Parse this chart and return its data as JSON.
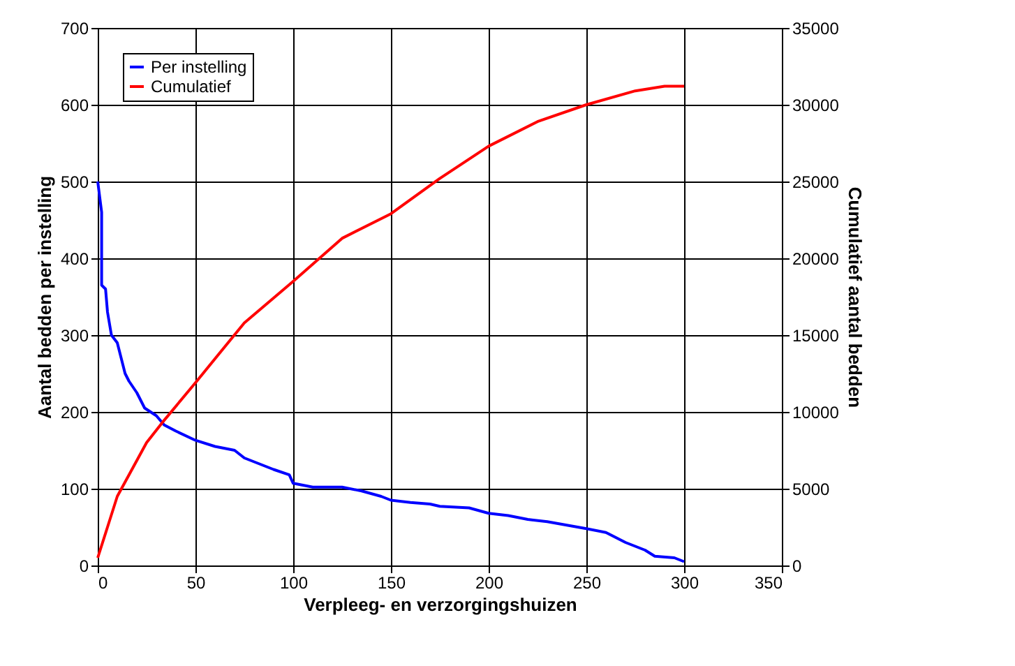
{
  "chart_data": {
    "type": "line",
    "xlabel": "Verpleeg- en verzorgingshuizen",
    "ylabel": "Aantal bedden per instelling",
    "y2label": "Cumulatief aantal bedden",
    "xlim": [
      0,
      350
    ],
    "xticks": [
      0,
      50,
      100,
      150,
      200,
      250,
      300,
      350
    ],
    "ylim": [
      0,
      700
    ],
    "yticks": [
      0,
      100,
      200,
      300,
      400,
      500,
      600,
      700
    ],
    "y2lim": [
      0,
      35000
    ],
    "y2ticks": [
      0,
      5000,
      10000,
      15000,
      20000,
      25000,
      30000,
      35000
    ],
    "grid": true,
    "legend": "top left",
    "marker": "none",
    "line_style": "solid",
    "series": [
      {
        "name": "Per instelling",
        "color": "#0000ff",
        "x": [
          0,
          2,
          2,
          4,
          5,
          7,
          10,
          12,
          14,
          16,
          20,
          24,
          30,
          34,
          40,
          50,
          60,
          70,
          75,
          80,
          90,
          98,
          100,
          110,
          125,
          135,
          145,
          150,
          160,
          170,
          175,
          190,
          200,
          210,
          220,
          230,
          250,
          260,
          270,
          280,
          285,
          295,
          300
        ],
        "values": [
          500,
          460,
          365,
          360,
          330,
          300,
          290,
          270,
          250,
          240,
          225,
          205,
          195,
          183,
          175,
          163,
          155,
          150,
          140,
          135,
          125,
          118,
          107,
          102,
          102,
          97,
          90,
          85,
          82,
          80,
          77,
          75,
          68,
          65,
          60,
          57,
          48,
          43,
          30,
          20,
          12,
          10,
          5
        ]
      },
      {
        "name": "Cumulatief",
        "color": "#ff0000",
        "axis": "y2",
        "x": [
          0,
          5,
          10,
          25,
          33,
          50,
          75,
          100,
          125,
          150,
          175,
          200,
          225,
          250,
          275,
          290,
          300
        ],
        "values": [
          500,
          2500,
          4500,
          8000,
          9300,
          11900,
          15800,
          18500,
          21300,
          22900,
          25200,
          27300,
          28900,
          30000,
          30900,
          31200,
          31200
        ]
      }
    ]
  }
}
